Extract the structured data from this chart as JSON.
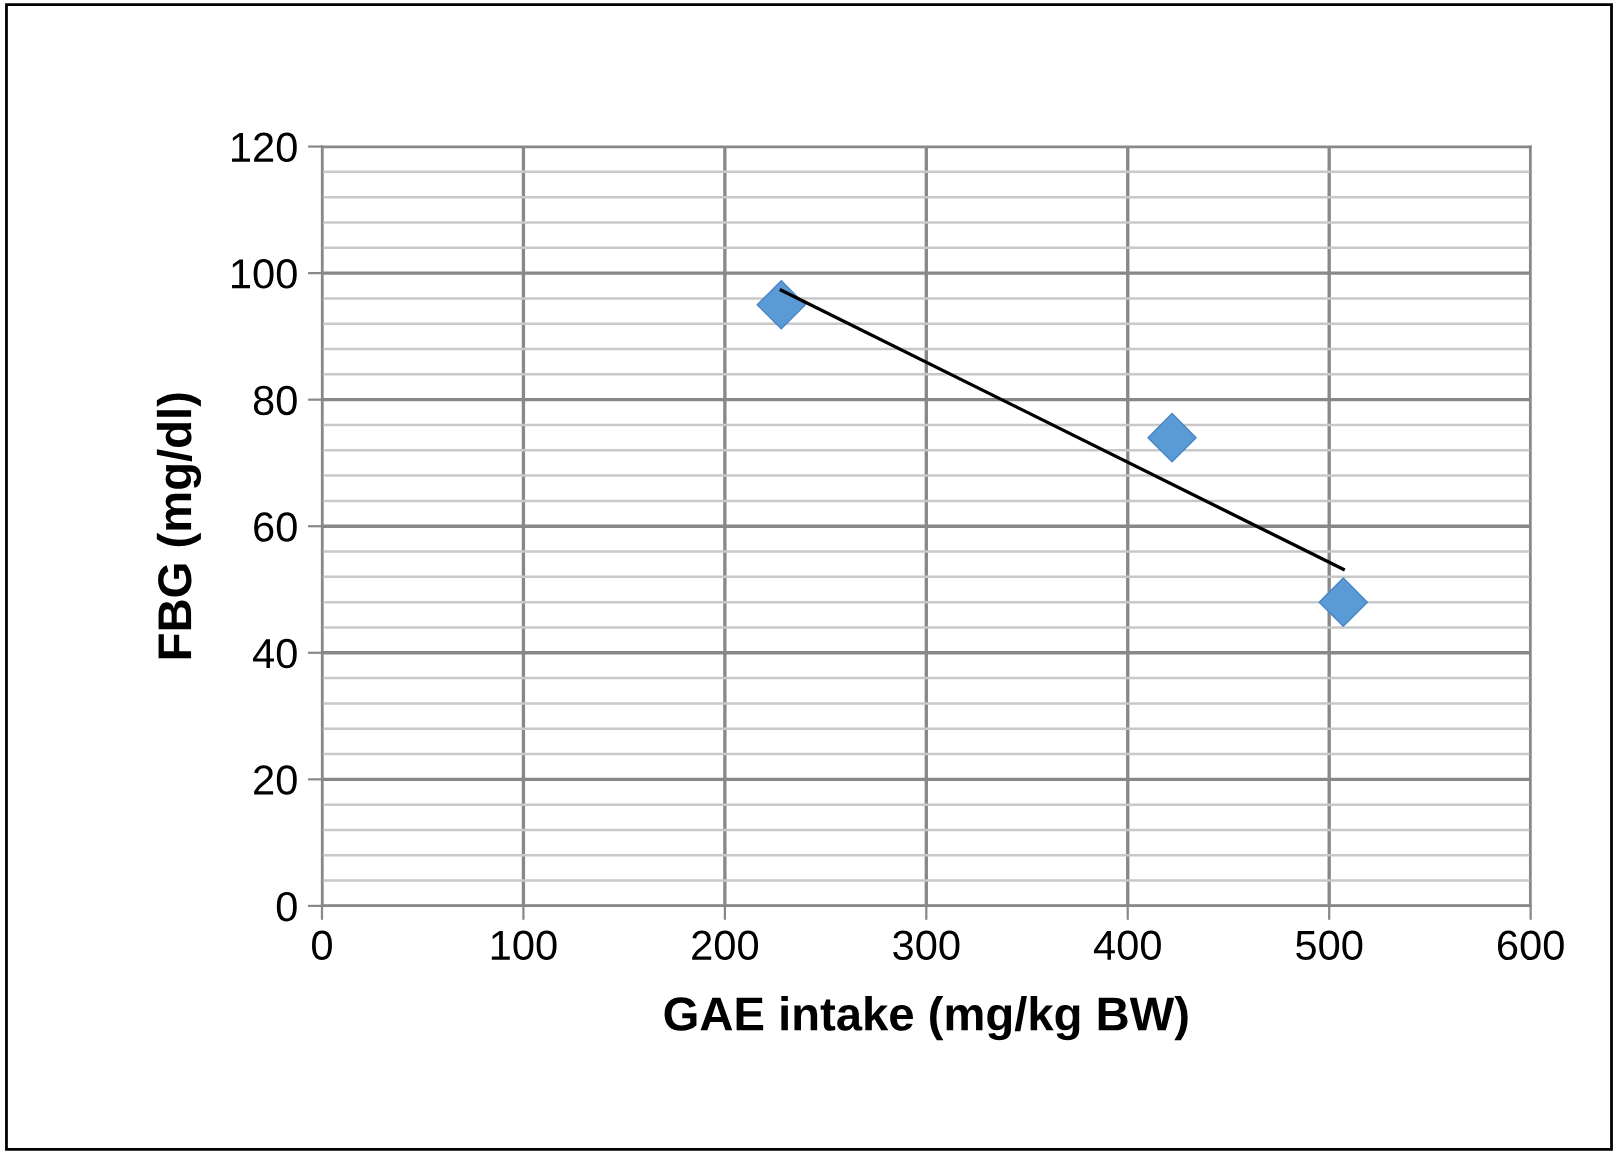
{
  "chart_data": {
    "type": "scatter",
    "xlabel": "GAE intake (mg/kg BW)",
    "ylabel": "FBG (mg/dl)",
    "xlim": [
      0,
      600
    ],
    "xticks": [
      0,
      100,
      200,
      300,
      400,
      500,
      600
    ],
    "ylim": [
      0,
      120
    ],
    "yticks": [
      0,
      20,
      40,
      60,
      80,
      100,
      120
    ],
    "grid": true,
    "legend": false,
    "series": [
      {
        "color": "#5b9bd5",
        "marker": "diamond",
        "x": [
          228,
          422,
          507
        ],
        "values": [
          95,
          74,
          48
        ]
      },
      {
        "type": "line",
        "color": "#000000",
        "marker": "none",
        "line_style": "solid",
        "x": [
          228,
          507
        ],
        "values": [
          97.3,
          53.2
        ]
      }
    ]
  }
}
